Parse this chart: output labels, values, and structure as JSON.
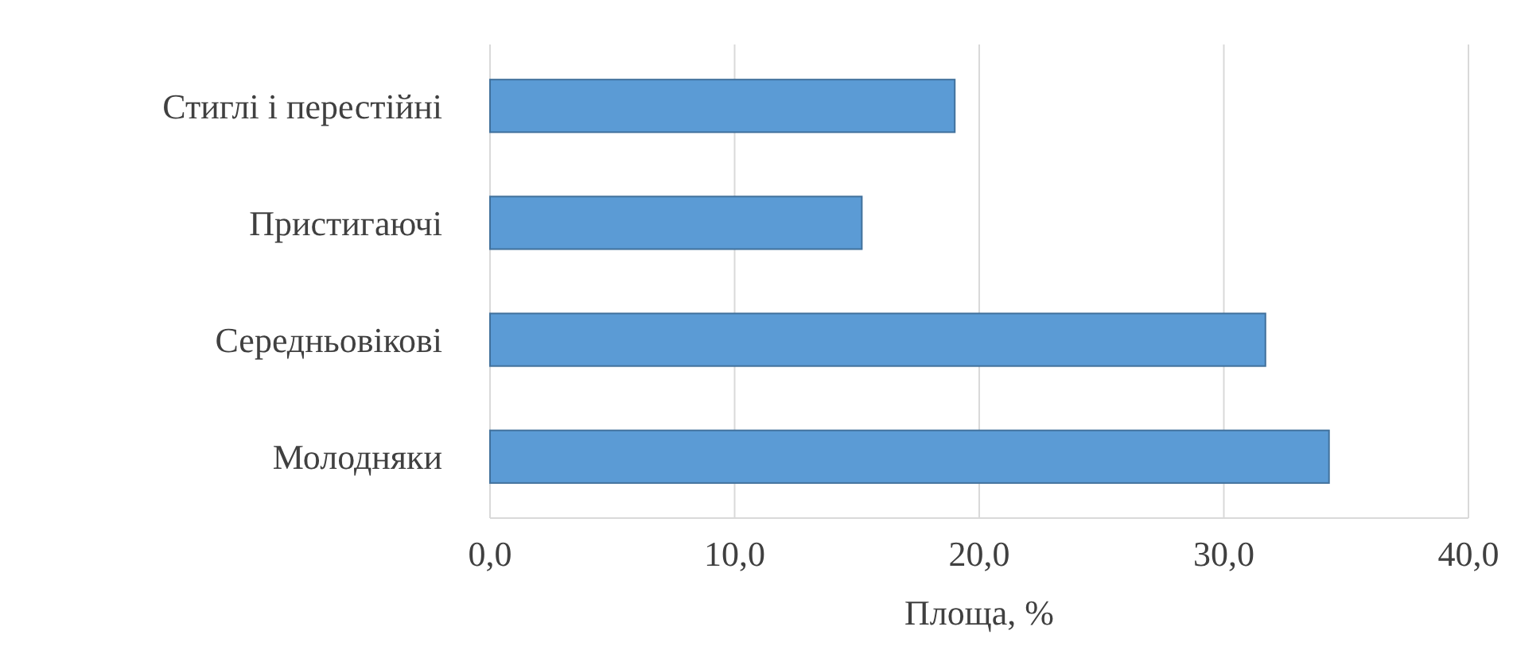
{
  "chart_data": {
    "type": "bar",
    "orientation": "horizontal",
    "xlabel": "Площа, %",
    "categories": [
      "Стиглі і перестійні",
      "Пристигаючі",
      "Середньовікові",
      "Молодняки"
    ],
    "values": [
      19.0,
      15.2,
      31.7,
      34.3
    ],
    "color": "#5b9bd5",
    "xlim": [
      0,
      40
    ],
    "xticks": [
      {
        "value": 0,
        "label": "0,0"
      },
      {
        "value": 10,
        "label": "10,0"
      },
      {
        "value": 20,
        "label": "20,0"
      },
      {
        "value": 30,
        "label": "30,0"
      },
      {
        "value": 40,
        "label": "40,0"
      }
    ],
    "grid": "x"
  }
}
